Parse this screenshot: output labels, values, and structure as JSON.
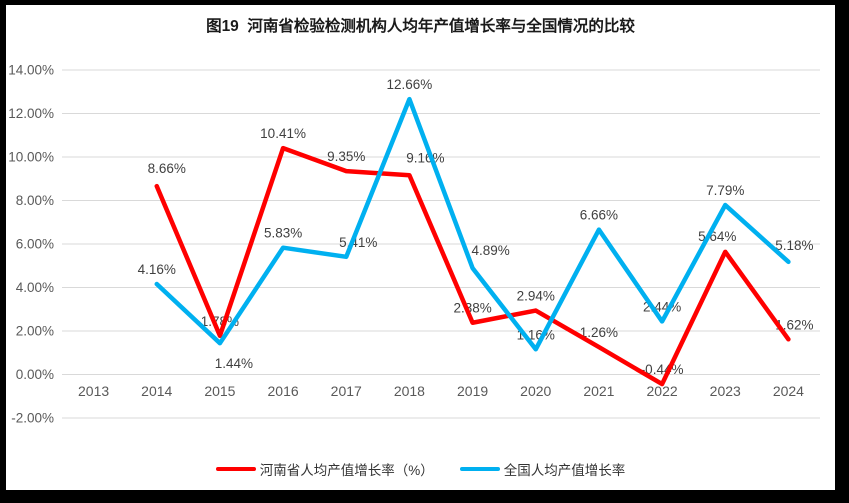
{
  "title": "图19  河南省检验检测机构人均年产值增长率与全国情况的比较",
  "colors": {
    "frame": "#000000",
    "panel_background": "#ffffff",
    "gridline": "#d9d9d9",
    "axis_text": "#595959",
    "data_label_text": "#404040",
    "henan_red": "#ff0000",
    "national_blue": "#00b0f0"
  },
  "chart_data": {
    "type": "line",
    "title": "图19  河南省检验检测机构人均年产值增长率与全国情况的比较",
    "categories": [
      "2013",
      "2014",
      "2015",
      "2016",
      "2017",
      "2018",
      "2019",
      "2020",
      "2021",
      "2022",
      "2023",
      "2024"
    ],
    "series": [
      {
        "name": "河南省人均产值增长率（%）",
        "color": "#ff0000",
        "values": [
          null,
          8.66,
          1.78,
          10.41,
          9.35,
          9.16,
          2.38,
          2.94,
          1.26,
          -0.44,
          5.64,
          1.62
        ]
      },
      {
        "name": "全国人均产值增长率",
        "color": "#00b0f0",
        "values": [
          null,
          4.16,
          1.44,
          5.83,
          5.41,
          12.66,
          4.89,
          1.16,
          6.66,
          2.44,
          7.79,
          5.18
        ]
      }
    ],
    "y_axis": {
      "min": -2,
      "max": 14,
      "step": 2,
      "tick_labels": [
        "14.00%",
        "12.00%",
        "10.00%",
        "8.00%",
        "6.00%",
        "4.00%",
        "2.00%",
        "0.00%",
        "-2.00%"
      ]
    },
    "data_labels": "value, two decimals with % suffix",
    "grid": true,
    "legend_position": "bottom"
  }
}
